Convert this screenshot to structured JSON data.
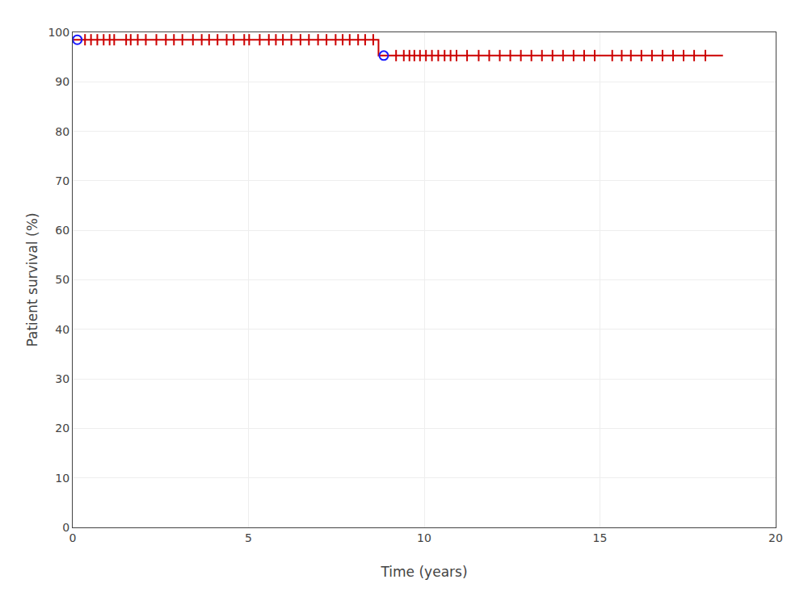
{
  "chart_data": {
    "type": "line",
    "xlabel": "Time (years)",
    "ylabel": "Patient survival (%)",
    "xlim": [
      0,
      20
    ],
    "ylim": [
      0,
      100
    ],
    "xticks": [
      0,
      5,
      10,
      15,
      20
    ],
    "yticks": [
      0,
      10,
      20,
      30,
      40,
      50,
      60,
      70,
      80,
      90,
      100
    ],
    "grid": true,
    "series": [
      {
        "type": "line",
        "color": "#cc0000",
        "x": [
          0,
          8.7,
          8.7,
          18.5
        ],
        "values": [
          98.5,
          98.5,
          95.3,
          95.3
        ]
      },
      {
        "type": "scatter",
        "marker": "line-ns",
        "color": "#cc0000",
        "x": [
          0.35,
          0.52,
          0.7,
          0.88,
          1.05,
          1.18,
          1.52,
          1.65,
          1.85,
          2.08,
          2.38,
          2.65,
          2.88,
          3.12,
          3.42,
          3.67,
          3.88,
          4.12,
          4.38,
          4.58,
          4.88,
          5.02,
          5.32,
          5.58,
          5.78,
          5.98,
          6.22,
          6.48,
          6.72,
          6.98,
          7.22,
          7.48,
          7.68,
          7.88,
          8.12,
          8.32,
          8.55
        ],
        "values": [
          98.5,
          98.5,
          98.5,
          98.5,
          98.5,
          98.5,
          98.5,
          98.5,
          98.5,
          98.5,
          98.5,
          98.5,
          98.5,
          98.5,
          98.5,
          98.5,
          98.5,
          98.5,
          98.5,
          98.5,
          98.5,
          98.5,
          98.5,
          98.5,
          98.5,
          98.5,
          98.5,
          98.5,
          98.5,
          98.5,
          98.5,
          98.5,
          98.5,
          98.5,
          98.5,
          98.5,
          98.5
        ]
      },
      {
        "type": "scatter",
        "marker": "line-ns",
        "color": "#cc0000",
        "x": [
          9.2,
          9.42,
          9.58,
          9.72,
          9.88,
          10.05,
          10.22,
          10.4,
          10.58,
          10.75,
          10.92,
          11.22,
          11.55,
          11.85,
          12.15,
          12.45,
          12.75,
          13.05,
          13.35,
          13.65,
          13.95,
          14.25,
          14.55,
          14.85,
          15.35,
          15.62,
          15.88,
          16.18,
          16.48,
          16.78,
          17.08,
          17.38,
          17.68,
          18.0
        ],
        "values": [
          95.3,
          95.3,
          95.3,
          95.3,
          95.3,
          95.3,
          95.3,
          95.3,
          95.3,
          95.3,
          95.3,
          95.3,
          95.3,
          95.3,
          95.3,
          95.3,
          95.3,
          95.3,
          95.3,
          95.3,
          95.3,
          95.3,
          95.3,
          95.3,
          95.3,
          95.3,
          95.3,
          95.3,
          95.3,
          95.3,
          95.3,
          95.3,
          95.3,
          95.3
        ]
      },
      {
        "type": "scatter",
        "marker": "circle-open",
        "color": "#1a1aff",
        "x": [
          0.13,
          8.85
        ],
        "values": [
          98.5,
          95.3
        ]
      }
    ]
  }
}
